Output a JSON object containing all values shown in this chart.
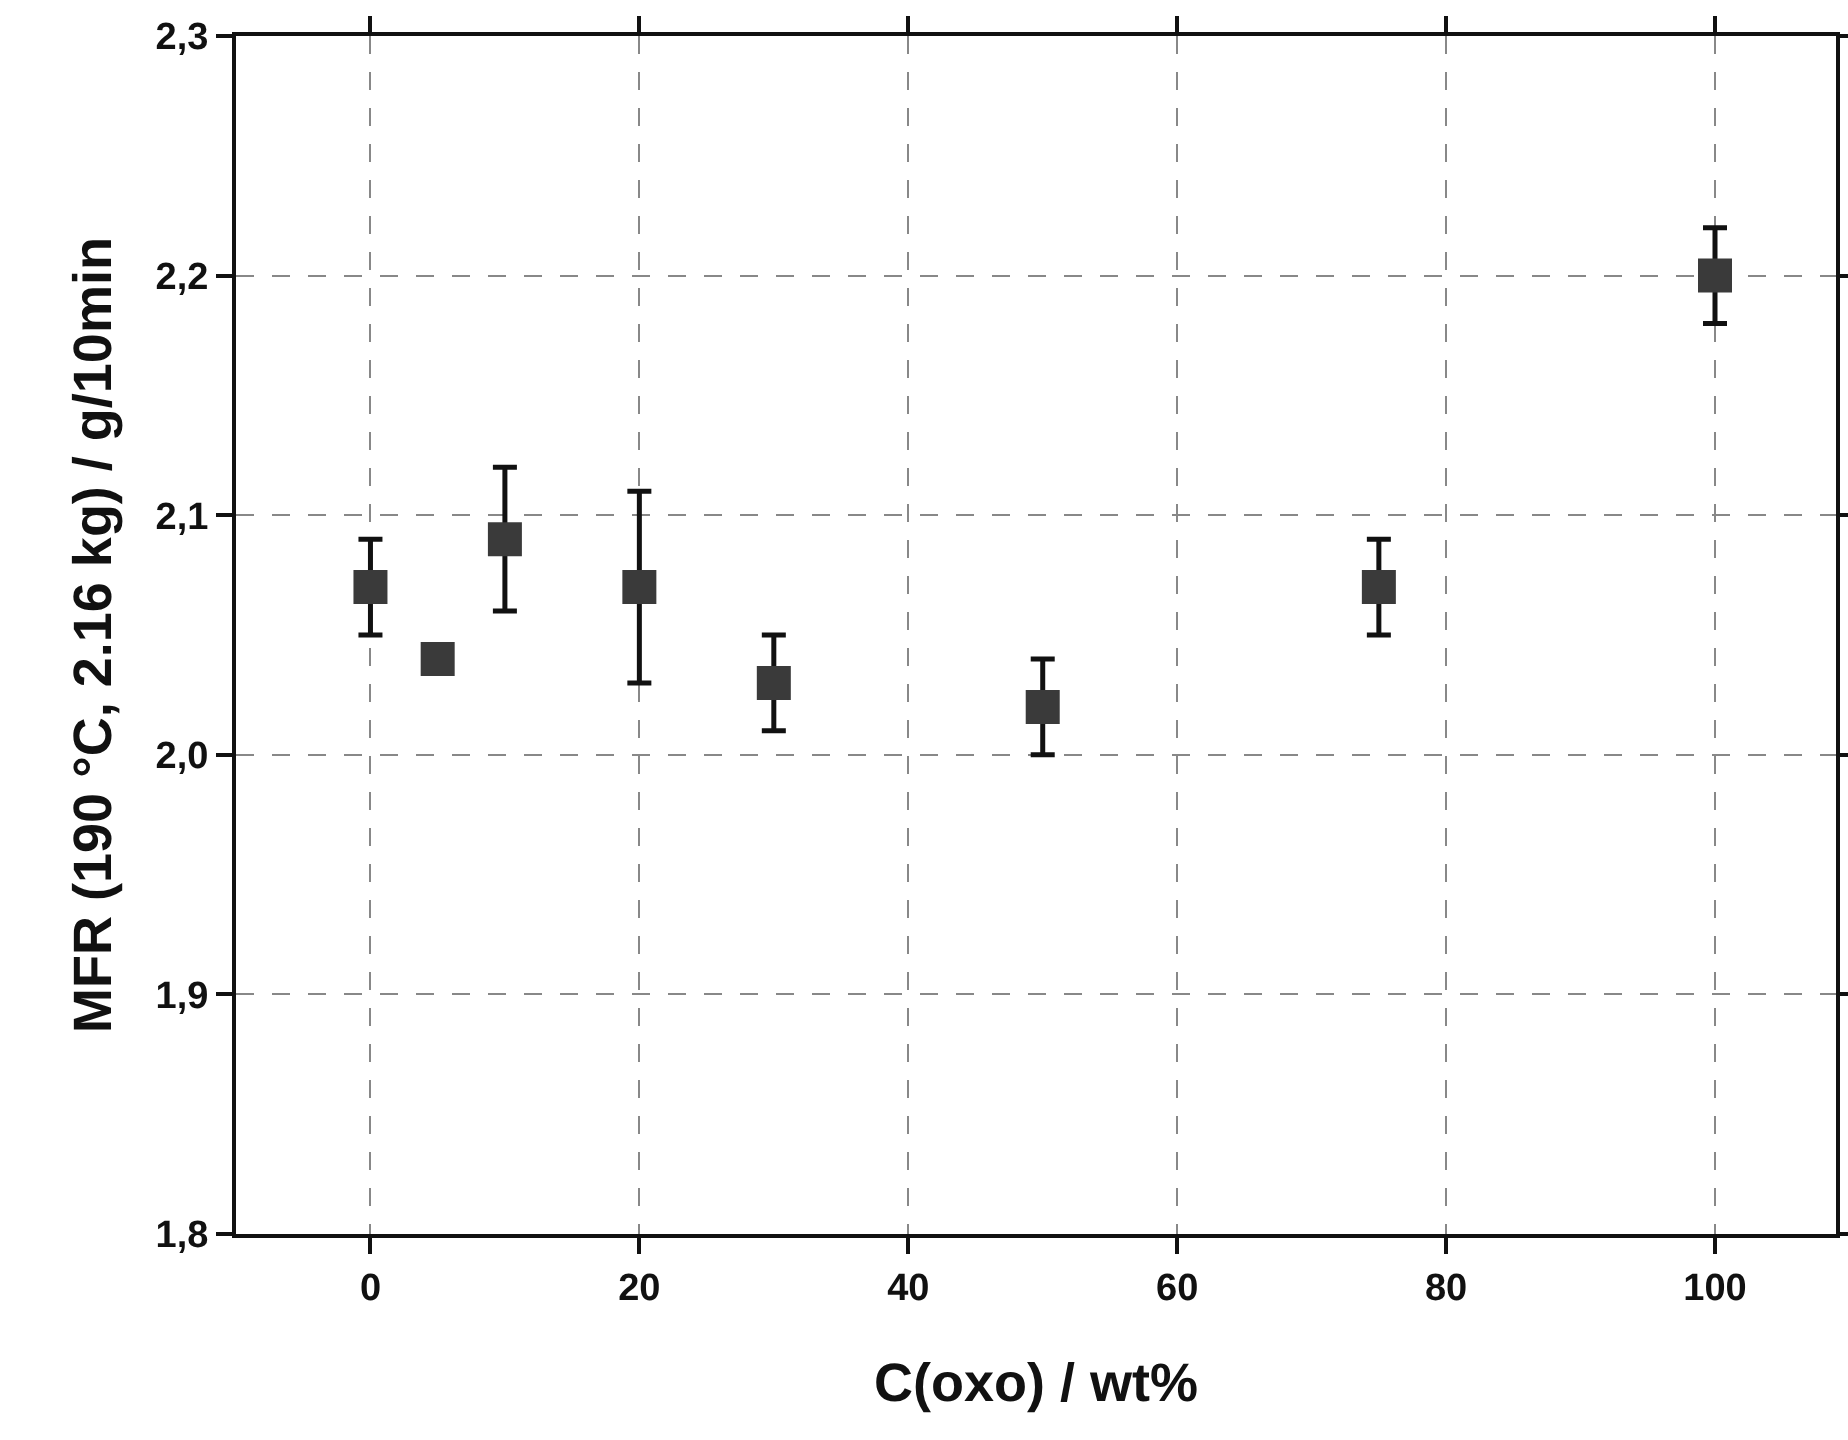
{
  "chart_data": {
    "type": "scatter",
    "xlabel": "C(oxo) / wt%",
    "ylabel": "MFR (190 °C, 2.16 kg) / g/10min",
    "x": [
      0,
      5,
      10,
      20,
      30,
      50,
      75,
      100
    ],
    "series": [
      {
        "color": "#3a3a3a",
        "values": [
          2.07,
          2.04,
          2.09,
          2.07,
          2.03,
          2.02,
          2.07,
          2.2
        ],
        "errors": [
          0.02,
          null,
          0.03,
          0.04,
          0.02,
          0.02,
          0.02,
          0.02
        ]
      }
    ],
    "xlim": [
      -10,
      109
    ],
    "xticks": [
      0,
      20,
      40,
      60,
      80,
      100
    ],
    "ylim": [
      1.8,
      2.3
    ],
    "yticks": [
      {
        "value": 1.8,
        "label": "1,8"
      },
      {
        "value": 1.9,
        "label": "1,9"
      },
      {
        "value": 2.0,
        "label": "2,0"
      },
      {
        "value": 2.1,
        "label": "2,1"
      },
      {
        "value": 2.2,
        "label": "2,2"
      },
      {
        "value": 2.3,
        "label": "2,3"
      }
    ],
    "grid": true,
    "marker": "square"
  }
}
